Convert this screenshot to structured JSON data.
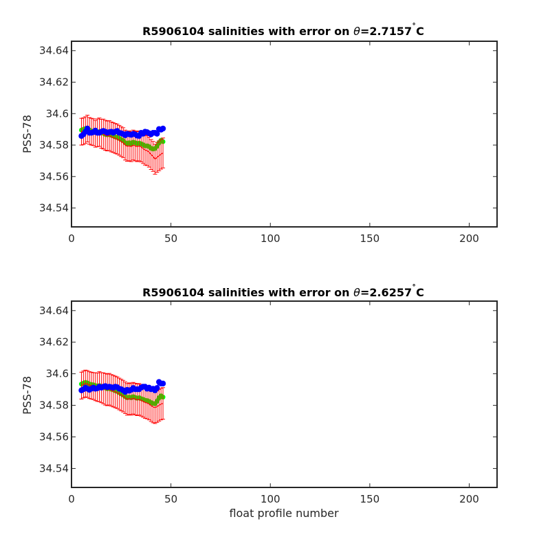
{
  "chart_data": [
    {
      "type": "scatter",
      "title_prefix": "R5906104 salinities with error on ",
      "title_symbol": "θ",
      "title_suffix": "=2.7157",
      "title_degree": "˚",
      "title_unit": "C",
      "xlabel": "",
      "ylabel": "PSS-78",
      "xlim": [
        0,
        214
      ],
      "ylim": [
        34.528,
        34.646
      ],
      "xticks": [
        "0",
        "50",
        "100",
        "150",
        "200"
      ],
      "yticks": [
        "34.54",
        "34.56",
        "34.58",
        "34.6",
        "34.62",
        "34.64"
      ],
      "colors": {
        "calibrated": "#0000ff",
        "error_bars": "#ff0000",
        "original": "#00ff00",
        "axes": "#262626"
      },
      "x": [
        5,
        6,
        7,
        8,
        9,
        10,
        11,
        12,
        13,
        14,
        15,
        16,
        17,
        18,
        19,
        20,
        21,
        22,
        23,
        24,
        25,
        26,
        27,
        28,
        29,
        30,
        31,
        32,
        33,
        34,
        35,
        36,
        37,
        38,
        39,
        40,
        41,
        42,
        43,
        44,
        45,
        46
      ],
      "calibrated": [
        34.5858,
        34.5868,
        34.5885,
        34.5905,
        34.5878,
        34.5878,
        34.5882,
        34.5892,
        34.5878,
        34.5878,
        34.5885,
        34.589,
        34.5885,
        34.5878,
        34.5882,
        34.5885,
        34.5878,
        34.5885,
        34.589,
        34.5878,
        34.5875,
        34.587,
        34.5862,
        34.5872,
        34.5868,
        34.5865,
        34.5872,
        34.5868,
        34.586,
        34.5858,
        34.5878,
        34.5872,
        34.5885,
        34.5882,
        34.5875,
        34.5868,
        34.5878,
        34.5878,
        34.5872,
        34.5902,
        34.5898,
        34.5905
      ],
      "adjusted": [
        34.5885,
        34.5888,
        34.5895,
        34.5905,
        34.589,
        34.5885,
        34.5882,
        34.5872,
        34.5878,
        34.5882,
        34.5872,
        34.587,
        34.5862,
        34.5858,
        34.586,
        34.5852,
        34.5848,
        34.5842,
        34.5838,
        34.583,
        34.5822,
        34.5815,
        34.58,
        34.5792,
        34.5795,
        34.579,
        34.58,
        34.5795,
        34.579,
        34.5795,
        34.5788,
        34.5778,
        34.5768,
        34.5765,
        34.5755,
        34.574,
        34.5728,
        34.571,
        34.5722,
        34.5732,
        34.5742,
        34.575
      ],
      "original": [
        34.5895,
        34.59,
        34.5905,
        34.5908,
        34.5895,
        34.589,
        34.5888,
        34.588,
        34.5885,
        34.5885,
        34.5878,
        34.5875,
        34.5868,
        34.5865,
        34.5868,
        34.5862,
        34.5858,
        34.5852,
        34.5848,
        34.5842,
        34.5835,
        34.5828,
        34.5815,
        34.581,
        34.5815,
        34.5808,
        34.5818,
        34.5815,
        34.581,
        34.5812,
        34.5808,
        34.5802,
        34.5795,
        34.5795,
        34.579,
        34.578,
        34.5775,
        34.5778,
        34.5792,
        34.5815,
        34.583,
        34.5822
      ],
      "error": [
        0.0085,
        0.0085,
        0.0085,
        0.0085,
        0.0085,
        0.0085,
        0.0085,
        0.0085,
        0.0088,
        0.009,
        0.0092,
        0.0095,
        0.0095,
        0.0095,
        0.0095,
        0.0095,
        0.0095,
        0.0095,
        0.0095,
        0.0095,
        0.0095,
        0.0095,
        0.0095,
        0.0095,
        0.0095,
        0.0095,
        0.0095,
        0.0095,
        0.0095,
        0.0095,
        0.0095,
        0.0095,
        0.0095,
        0.0095,
        0.0095,
        0.0095,
        0.0095,
        0.0095,
        0.0095,
        0.0095,
        0.0095,
        0.0095
      ]
    },
    {
      "type": "scatter",
      "title_prefix": "R5906104 salinities with error on ",
      "title_symbol": "θ",
      "title_suffix": "=2.6257",
      "title_degree": "˚",
      "title_unit": "C",
      "xlabel": "float profile number",
      "ylabel": "PSS-78",
      "xlim": [
        0,
        214
      ],
      "ylim": [
        34.528,
        34.646
      ],
      "xticks": [
        "0",
        "50",
        "100",
        "150",
        "200"
      ],
      "yticks": [
        "34.54",
        "34.56",
        "34.58",
        "34.6",
        "34.62",
        "34.64"
      ],
      "colors": {
        "calibrated": "#0000ff",
        "error_bars": "#ff0000",
        "original": "#00ff00",
        "axes": "#262626"
      },
      "x": [
        5,
        6,
        7,
        8,
        9,
        10,
        11,
        12,
        13,
        14,
        15,
        16,
        17,
        18,
        19,
        20,
        21,
        22,
        23,
        24,
        25,
        26,
        27,
        28,
        29,
        30,
        31,
        32,
        33,
        34,
        35,
        36,
        37,
        38,
        39,
        40,
        41,
        42,
        43,
        44,
        45,
        46
      ],
      "calibrated": [
        34.5895,
        34.5902,
        34.5912,
        34.5905,
        34.5898,
        34.5905,
        34.5912,
        34.5905,
        34.5908,
        34.5918,
        34.5912,
        34.5918,
        34.5922,
        34.5915,
        34.5918,
        34.5915,
        34.5912,
        34.5918,
        34.5915,
        34.5905,
        34.5902,
        34.5895,
        34.5885,
        34.5898,
        34.5892,
        34.5898,
        34.591,
        34.5902,
        34.5902,
        34.5902,
        34.5912,
        34.5918,
        34.5918,
        34.5905,
        34.5912,
        34.5902,
        34.5905,
        34.5895,
        34.591,
        34.5948,
        34.5938,
        34.5938
      ],
      "adjusted": [
        34.5925,
        34.5932,
        34.5938,
        34.5935,
        34.5928,
        34.5925,
        34.5922,
        34.5918,
        34.5915,
        34.5918,
        34.5912,
        34.5908,
        34.5902,
        34.5898,
        34.5902,
        34.5895,
        34.589,
        34.5885,
        34.588,
        34.5872,
        34.5865,
        34.5858,
        34.5848,
        34.5838,
        34.5842,
        34.5838,
        34.5845,
        34.584,
        34.5835,
        34.5838,
        34.5832,
        34.5825,
        34.5818,
        34.5815,
        34.5808,
        34.5798,
        34.579,
        34.5785,
        34.5792,
        34.58,
        34.5808,
        34.5812
      ],
      "original": [
        34.5935,
        34.594,
        34.5945,
        34.5942,
        34.5935,
        34.5932,
        34.593,
        34.5925,
        34.5922,
        34.5925,
        34.592,
        34.5915,
        34.591,
        34.5905,
        34.5908,
        34.5902,
        34.5898,
        34.5892,
        34.5888,
        34.588,
        34.5872,
        34.5865,
        34.5855,
        34.5848,
        34.5852,
        34.5848,
        34.5855,
        34.585,
        34.5845,
        34.5848,
        34.5842,
        34.5838,
        34.5832,
        34.583,
        34.5825,
        34.5818,
        34.5812,
        34.581,
        34.5825,
        34.5848,
        34.586,
        34.5852
      ],
      "error": [
        0.0085,
        0.0085,
        0.0085,
        0.0085,
        0.0085,
        0.0085,
        0.0085,
        0.0088,
        0.009,
        0.0095,
        0.0095,
        0.0098,
        0.01,
        0.01,
        0.01,
        0.01,
        0.01,
        0.01,
        0.01,
        0.01,
        0.01,
        0.01,
        0.01,
        0.01,
        0.01,
        0.01,
        0.01,
        0.01,
        0.01,
        0.01,
        0.01,
        0.01,
        0.01,
        0.01,
        0.01,
        0.01,
        0.01,
        0.01,
        0.01,
        0.01,
        0.01,
        0.01
      ]
    }
  ]
}
